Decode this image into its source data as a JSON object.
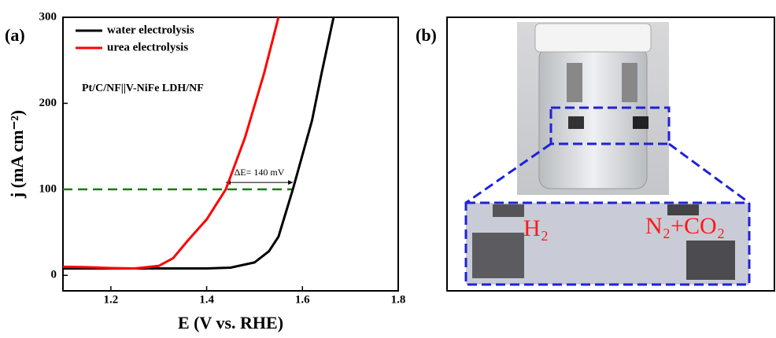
{
  "chart_data": {
    "type": "line",
    "panel_label": "(a)",
    "xlabel": "E (V vs. RHE)",
    "ylabel": "j (mA cm⁻²)",
    "xlim": [
      1.1,
      1.8
    ],
    "ylim": [
      -18,
      300
    ],
    "xticks": [
      1.2,
      1.4,
      1.6,
      1.8
    ],
    "yticks": [
      0,
      100,
      200,
      300
    ],
    "series": [
      {
        "name": "water electrolysis",
        "color": "#000000",
        "x": [
          1.1,
          1.2,
          1.3,
          1.4,
          1.45,
          1.5,
          1.53,
          1.55,
          1.58,
          1.6,
          1.62,
          1.64,
          1.665
        ],
        "values": [
          8,
          8,
          8,
          8,
          9,
          15,
          28,
          45,
          100,
          140,
          180,
          235,
          300
        ]
      },
      {
        "name": "urea electrolysis",
        "color": "#ff0000",
        "x": [
          1.1,
          1.15,
          1.2,
          1.25,
          1.3,
          1.33,
          1.36,
          1.4,
          1.44,
          1.48,
          1.52,
          1.55
        ],
        "values": [
          10,
          9.5,
          8.5,
          8,
          11,
          20,
          40,
          65,
          100,
          160,
          235,
          300
        ]
      }
    ],
    "reference_line": {
      "value": 100,
      "xmax": 1.58,
      "color": "#1a7a1a"
    },
    "arrow": {
      "x": [
        1.44,
        1.58
      ],
      "y": 108,
      "label": "ΔE= 140 mV"
    },
    "annotation": "Pt/C/NF||V-NiFe LDH/NF"
  },
  "panel_b": {
    "label": "(b)",
    "gas_labels": [
      "H₂",
      "N₂+CO₂"
    ]
  }
}
